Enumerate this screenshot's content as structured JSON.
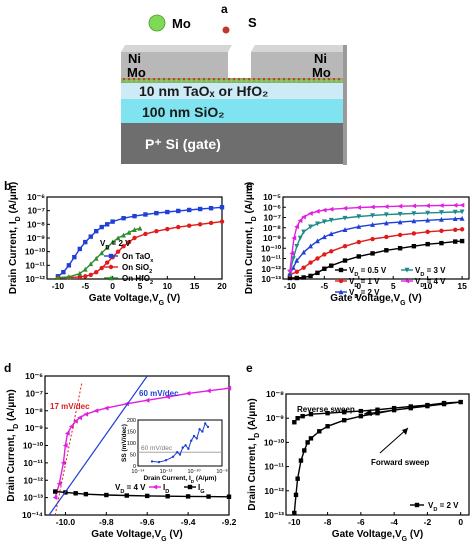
{
  "figure": {
    "panel_labels": [
      "a",
      "b",
      "c",
      "d",
      "e"
    ]
  },
  "schematic": {
    "legend_mo": "Mo",
    "legend_s": "S",
    "contact_left_top": "Ni",
    "contact_left_bottom": "Mo",
    "contact_right_top": "Ni",
    "contact_right_bottom": "Mo",
    "oxide_label": "10 nm TaOₓ or HfO₂",
    "sio2_label": "100 nm SiO₂",
    "gate_label": "P⁺ Si  (gate)",
    "colors": {
      "mo_atom": "#7ed957",
      "s_atom": "#c0392b",
      "oxide": "#cdebf7",
      "sio2": "#7fe3f0",
      "gate": "#6e6e6e",
      "contact": "#b8b8b8"
    }
  },
  "chart_data": [
    {
      "panel": "b",
      "type": "line",
      "xlabel": "Gate Voltage,Vₗ (V)",
      "xlabel_parts": [
        "Gate Voltage,V",
        "G",
        " (V)"
      ],
      "ylabel_parts": [
        "Drain Current, I",
        "D",
        " (A/μm)"
      ],
      "xlim": [
        -12,
        20
      ],
      "ylim_log10": [
        -12,
        -6
      ],
      "x_ticks": [
        "-10",
        "-5",
        "0",
        "5",
        "10",
        "15",
        "20"
      ],
      "y_ticks": [
        "10⁻¹²",
        "10⁻¹¹",
        "10⁻¹⁰",
        "10⁻⁹",
        "10⁻⁸",
        "10⁻⁷",
        "10⁻⁶"
      ],
      "annotation": "Vₗ = 2 V",
      "annotation_parts": [
        "V",
        "D",
        " = 2 V"
      ],
      "series": [
        {
          "name_parts": [
            "On TaO",
            "x",
            ""
          ],
          "color": "#1f3fd6",
          "marker": "square",
          "x": [
            -10,
            -9,
            -8,
            -7,
            -6,
            -5,
            -4,
            -3,
            -2,
            -1,
            0,
            2,
            4,
            6,
            8,
            10,
            12,
            14,
            16,
            18,
            20
          ],
          "log10_y": [
            -11.8,
            -11.5,
            -11.0,
            -10.4,
            -9.8,
            -9.3,
            -8.9,
            -8.5,
            -8.2,
            -8.0,
            -7.8,
            -7.55,
            -7.4,
            -7.28,
            -7.18,
            -7.1,
            -7.02,
            -6.95,
            -6.88,
            -6.82,
            -6.75
          ]
        },
        {
          "name_parts": [
            "On SiO",
            "2",
            ""
          ],
          "color": "#e01b1b",
          "marker": "circle",
          "x": [
            -10,
            -8,
            -6,
            -5,
            -4,
            -3,
            -2,
            -1,
            0,
            1,
            2,
            3,
            4,
            6,
            8,
            10,
            12,
            14,
            16,
            18,
            20
          ],
          "log10_y": [
            -11.9,
            -11.9,
            -11.85,
            -11.8,
            -11.7,
            -11.5,
            -11.2,
            -10.8,
            -10.4,
            -10.0,
            -9.6,
            -9.3,
            -9.0,
            -8.7,
            -8.5,
            -8.35,
            -8.2,
            -8.1,
            -8.0,
            -7.9,
            -7.8
          ]
        },
        {
          "name_parts": [
            "On HfO",
            "2",
            ""
          ],
          "color": "#2e8b2e",
          "marker": "triangle",
          "x": [
            -10,
            -8,
            -6,
            -5,
            -4,
            -3,
            -2,
            -1,
            0,
            1,
            2,
            3,
            4,
            5
          ],
          "log10_y": [
            -11.9,
            -11.85,
            -11.6,
            -11.3,
            -10.9,
            -10.5,
            -10.1,
            -9.7,
            -9.3,
            -9.0,
            -8.8,
            -8.6,
            -8.4,
            -8.3
          ]
        }
      ]
    },
    {
      "panel": "c",
      "type": "line",
      "xlabel_parts": [
        "Gate Voltage,V",
        "G",
        " (V)"
      ],
      "ylabel_parts": [
        "Drain Current, I",
        "D",
        " (A/μm)"
      ],
      "xlim": [
        -11,
        16
      ],
      "ylim_log10": [
        -13,
        -5
      ],
      "x_ticks": [
        "-10",
        "-5",
        "0",
        "5",
        "10",
        "15"
      ],
      "y_ticks": [
        "10⁻¹³",
        "10⁻¹²",
        "10⁻¹¹",
        "10⁻¹⁰",
        "10⁻⁹",
        "10⁻⁸",
        "10⁻⁷",
        "10⁻⁶",
        "10⁻⁵"
      ],
      "series": [
        {
          "name_parts": [
            "V",
            "D",
            " = 0.5 V"
          ],
          "color": "#000000",
          "marker": "square",
          "x": [
            -10,
            -9,
            -8,
            -7,
            -6,
            -5,
            -4,
            -2,
            0,
            2,
            4,
            6,
            8,
            10,
            12,
            14,
            15
          ],
          "log10_y": [
            -12.9,
            -12.9,
            -12.85,
            -12.7,
            -12.4,
            -12.0,
            -11.7,
            -11.2,
            -10.8,
            -10.5,
            -10.2,
            -10.0,
            -9.8,
            -9.6,
            -9.5,
            -9.35,
            -9.3
          ]
        },
        {
          "name_parts": [
            "V",
            "D",
            " = 1 V"
          ],
          "color": "#e01b1b",
          "marker": "circle",
          "x": [
            -10,
            -9,
            -8,
            -7,
            -6,
            -5,
            -4,
            -2,
            0,
            2,
            4,
            6,
            8,
            10,
            12,
            14,
            15
          ],
          "log10_y": [
            -12.6,
            -12.3,
            -11.9,
            -11.4,
            -11.0,
            -10.6,
            -10.3,
            -9.8,
            -9.4,
            -9.1,
            -8.9,
            -8.7,
            -8.55,
            -8.4,
            -8.3,
            -8.2,
            -8.15
          ]
        },
        {
          "name_parts": [
            "V",
            "D",
            " = 2 V"
          ],
          "color": "#1f3fd6",
          "marker": "triangle",
          "x": [
            -10,
            -9.5,
            -9,
            -8,
            -7,
            -6,
            -5,
            -4,
            -2,
            0,
            2,
            4,
            6,
            8,
            10,
            12,
            14,
            15
          ],
          "log10_y": [
            -12.5,
            -11.9,
            -11.2,
            -10.4,
            -9.8,
            -9.3,
            -8.9,
            -8.6,
            -8.2,
            -7.9,
            -7.7,
            -7.55,
            -7.45,
            -7.35,
            -7.27,
            -7.2,
            -7.13,
            -7.1
          ]
        },
        {
          "name_parts": [
            "V",
            "D",
            " = 3 V"
          ],
          "color": "#1f8a8a",
          "marker": "triangle-down",
          "x": [
            -10,
            -9.5,
            -9,
            -8.5,
            -8,
            -7,
            -6,
            -5,
            -4,
            -2,
            0,
            2,
            4,
            6,
            8,
            10,
            12,
            14,
            15
          ],
          "log10_y": [
            -12.3,
            -11.0,
            -9.8,
            -9.0,
            -8.4,
            -7.9,
            -7.6,
            -7.4,
            -7.25,
            -7.05,
            -6.9,
            -6.8,
            -6.72,
            -6.66,
            -6.6,
            -6.55,
            -6.5,
            -6.46,
            -6.44
          ]
        },
        {
          "name_parts": [
            "V",
            "D",
            " = 4 V"
          ],
          "color": "#e020e0",
          "marker": "triangle-left",
          "x": [
            -10,
            -9.7,
            -9.4,
            -9,
            -8.5,
            -8,
            -7,
            -6,
            -5,
            -4,
            -2,
            0,
            2,
            4,
            6,
            8,
            10,
            12,
            14,
            15
          ],
          "log10_y": [
            -12.2,
            -10.5,
            -9.0,
            -7.9,
            -7.3,
            -6.95,
            -6.6,
            -6.4,
            -6.28,
            -6.2,
            -6.1,
            -6.03,
            -5.98,
            -5.94,
            -5.9,
            -5.87,
            -5.85,
            -5.83,
            -5.81,
            -5.8
          ]
        }
      ]
    },
    {
      "panel": "d",
      "type": "line",
      "xlabel_parts": [
        "Gate Voltage,V",
        "G",
        " (V)"
      ],
      "ylabel_parts": [
        "Drain Current, I",
        "D",
        " (A/μm)"
      ],
      "xlim": [
        -10.1,
        -9.2
      ],
      "ylim_log10": [
        -14,
        -6
      ],
      "x_ticks": [
        "-10.0",
        "-9.8",
        "-9.6",
        "-9.4",
        "-9.2"
      ],
      "y_ticks": [
        "10⁻¹⁴",
        "10⁻¹³",
        "10⁻¹²",
        "10⁻¹¹",
        "10⁻¹⁰",
        "10⁻⁹",
        "10⁻⁸",
        "10⁻⁷",
        "10⁻⁶"
      ],
      "annotation_17": "17 mV/dec",
      "annotation_60": "60 mV/dec",
      "annotation_vd": "Vₗ = 4 V",
      "annotation_vd_parts": [
        "V",
        "D",
        " = 4 V"
      ],
      "series": [
        {
          "name_parts": [
            "I",
            "D",
            ""
          ],
          "color": "#e020e0",
          "marker": "triangle-left",
          "x": [
            -10.05,
            -10.03,
            -10.01,
            -10.0,
            -9.99,
            -9.97,
            -9.95,
            -9.93,
            -9.9,
            -9.85,
            -9.8,
            -9.7,
            -9.6,
            -9.5,
            -9.4,
            -9.3,
            -9.2
          ],
          "log10_y": [
            -13.0,
            -12.2,
            -11.0,
            -10.0,
            -9.3,
            -8.9,
            -8.6,
            -8.4,
            -8.2,
            -8.0,
            -7.85,
            -7.6,
            -7.4,
            -7.2,
            -7.0,
            -6.85,
            -6.7
          ]
        },
        {
          "name_parts": [
            "I",
            "G",
            ""
          ],
          "color": "#000000",
          "marker": "square",
          "x": [
            -10.05,
            -10.0,
            -9.95,
            -9.9,
            -9.8,
            -9.7,
            -9.6,
            -9.5,
            -9.4,
            -9.3,
            -9.2
          ],
          "log10_y": [
            -12.65,
            -12.7,
            -12.75,
            -12.8,
            -12.85,
            -12.88,
            -12.9,
            -12.92,
            -12.93,
            -12.94,
            -12.95
          ]
        }
      ],
      "inset": {
        "xlabel_parts": [
          "Drain Current, I",
          "D",
          " (A/μm)"
        ],
        "ylabel": "SS (mV/dec)",
        "reference_label": "60 mV/dec",
        "x_log10_range": [
          -14,
          -8
        ],
        "ylim": [
          0,
          200
        ],
        "x_ticks": [
          "10⁻¹⁴",
          "10⁻¹²",
          "10⁻¹⁰",
          "10⁻⁸"
        ],
        "y_ticks": [
          "0",
          "50",
          "100",
          "150",
          "200"
        ],
        "series_log10_x": [
          -13.0,
          -12.5,
          -12.0,
          -11.5,
          -11.2,
          -11.0,
          -10.8,
          -10.6,
          -10.4,
          -10.2,
          -10.0,
          -9.8,
          -9.6,
          -9.4,
          -9.2,
          -9.0
        ],
        "series_y": [
          20,
          17,
          25,
          40,
          60,
          50,
          80,
          90,
          75,
          110,
          130,
          120,
          160,
          150,
          185,
          170
        ],
        "color": "#1f3fd6"
      }
    },
    {
      "panel": "e",
      "type": "line",
      "xlabel_parts": [
        "Gate Voltage,V",
        "G",
        " (V)"
      ],
      "ylabel_parts": [
        "Drain Current, I",
        "D",
        " (A/μm)"
      ],
      "xlim": [
        -10.5,
        0.5
      ],
      "ylim_log10": [
        -14,
        -8
      ],
      "x_ticks": [
        "-10",
        "-8",
        "-6",
        "-4",
        "-2",
        "0"
      ],
      "y_ticks": [
        "10⁻¹³",
        "10⁻¹²",
        "10⁻¹¹",
        "10⁻¹⁰",
        "10⁻⁹",
        "10⁻⁸"
      ],
      "annotation_reverse": "Reverse sweep",
      "annotation_forward": "Forward sweep",
      "series": [
        {
          "name_parts": [
            "V",
            "D",
            " = 2 V"
          ],
          "color": "#000000",
          "marker": "square",
          "x": [
            -10,
            -9.9,
            -9.8,
            -9.6,
            -9.4,
            -9.2,
            -9.0,
            -8.5,
            -8.0,
            -7.0,
            -6.0,
            -5.0,
            -4.0,
            -3.0,
            -2.0,
            -1.0,
            0,
            -1.0,
            -2.0,
            -3.0,
            -4.0,
            -5.0,
            -6.0,
            -7.0,
            -8.0,
            -9.0,
            -9.5,
            -9.8,
            -10
          ],
          "log10_y": [
            -13.9,
            -13.0,
            -12.2,
            -11.3,
            -10.8,
            -10.4,
            -10.2,
            -9.85,
            -9.6,
            -9.3,
            -9.1,
            -8.95,
            -8.8,
            -8.7,
            -8.6,
            -8.5,
            -8.4,
            -8.45,
            -8.55,
            -8.62,
            -8.7,
            -8.78,
            -8.85,
            -8.9,
            -8.95,
            -9.0,
            -9.1,
            -9.2,
            -9.4
          ]
        }
      ]
    }
  ]
}
